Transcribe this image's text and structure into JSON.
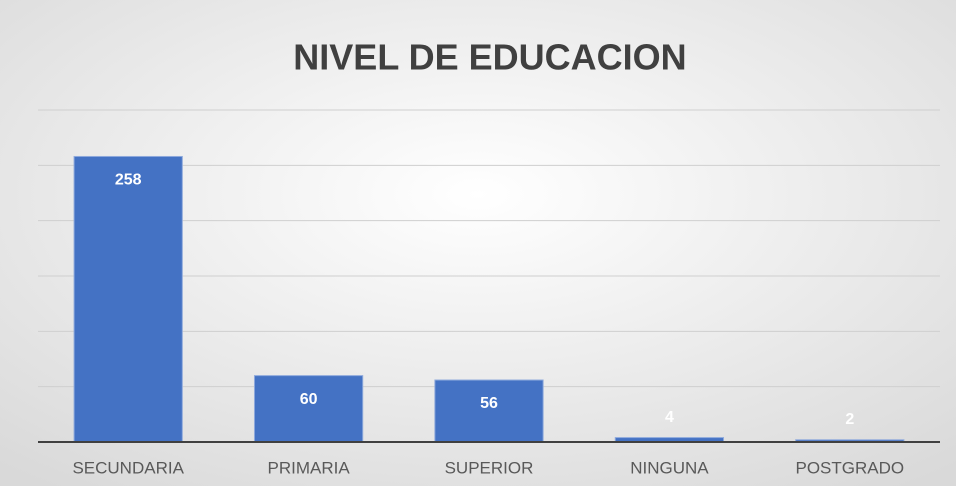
{
  "chart_data": {
    "type": "bar",
    "title": "NIVEL DE EDUCACION",
    "categories": [
      "SECUNDARIA",
      "PRIMARIA",
      "SUPERIOR",
      "NINGUNA",
      "POSTGRADO"
    ],
    "values": [
      258,
      60,
      56,
      4,
      2
    ],
    "color": "#4472c4",
    "ylim": [
      0,
      300
    ],
    "yticks": [
      0,
      50,
      100,
      150,
      200,
      250,
      300
    ],
    "grid": true
  }
}
